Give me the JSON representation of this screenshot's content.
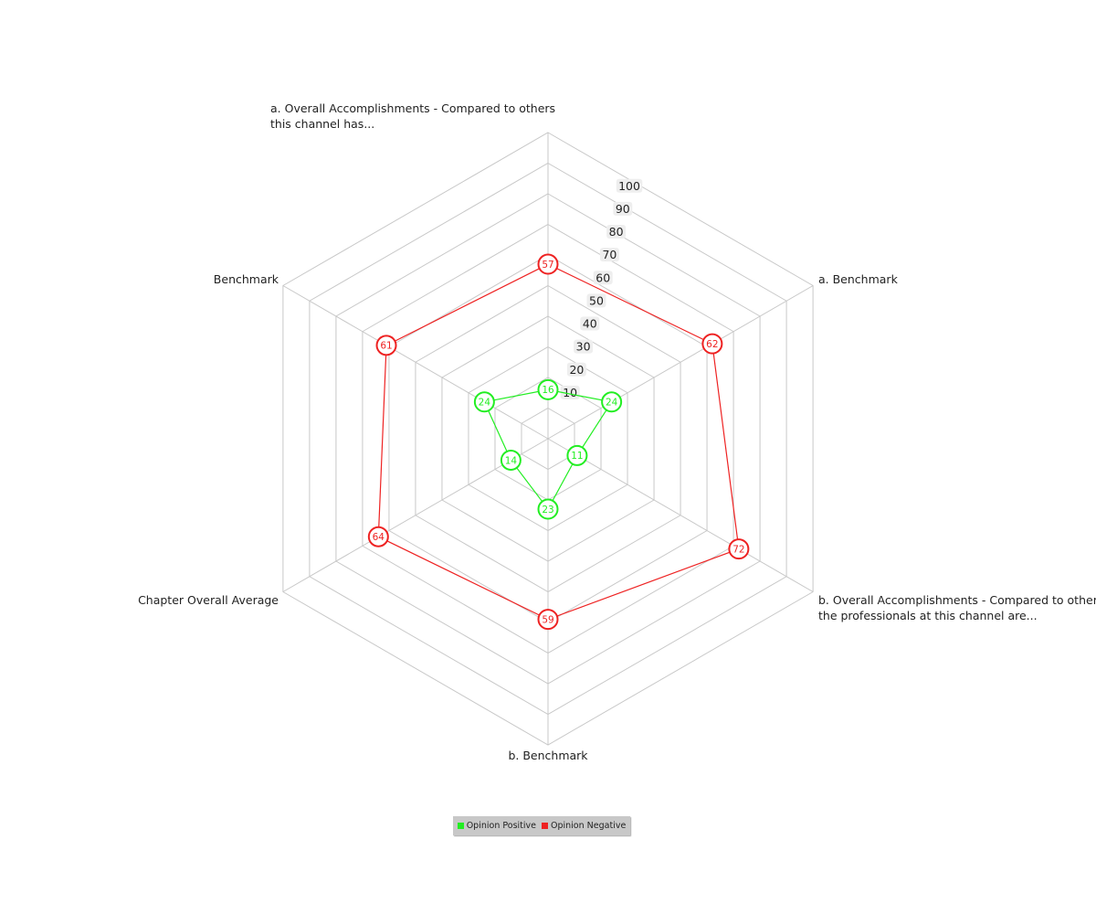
{
  "chart_data": {
    "type": "radar",
    "axes": [
      {
        "label_lines": [
          "a. Overall Accomplishments - Compared to others",
          "this channel has..."
        ]
      },
      {
        "label_lines": [
          "a. Benchmark"
        ]
      },
      {
        "label_lines": [
          "b. Overall Accomplishments - Compared to others",
          "the professionals at this channel are..."
        ]
      },
      {
        "label_lines": [
          "b. Benchmark"
        ]
      },
      {
        "label_lines": [
          "Chapter Overall Average"
        ]
      },
      {
        "label_lines": [
          "Benchmark"
        ]
      }
    ],
    "rlim": [
      0,
      100
    ],
    "ticks": [
      10,
      20,
      30,
      40,
      50,
      60,
      70,
      80,
      90,
      100
    ],
    "grid": true,
    "series": [
      {
        "name": "Opinion Positive",
        "color": "#22ee22",
        "values": [
          16,
          24,
          11,
          23,
          14,
          24
        ]
      },
      {
        "name": "Opinion Negative",
        "color": "#ee2222",
        "values": [
          57,
          62,
          72,
          59,
          64,
          61
        ]
      }
    ],
    "legend": "bottom"
  }
}
